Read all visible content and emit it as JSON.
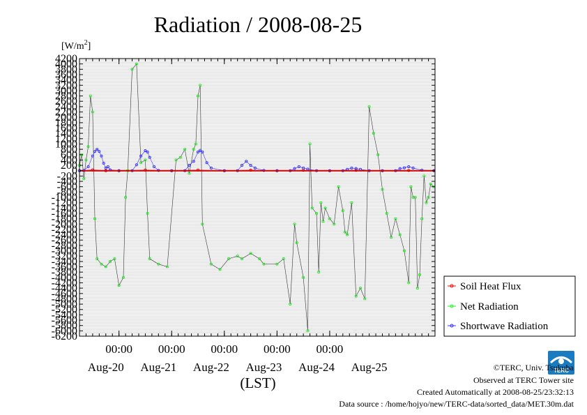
{
  "chart_data": {
    "type": "line",
    "title": "Radiation / 2008-08-25",
    "ylabel_unit": "[W/m",
    "ylabel_unit_sup": "2",
    "ylabel_unit_close": "]",
    "xlabel": "(LST)",
    "ylim": [
      -6200,
      4200
    ],
    "xlim": [
      "2008-08-19 06:00",
      "2008-08-25 23:59"
    ],
    "y_tick_labels": [
      "4200",
      "4000",
      "3800",
      "3600",
      "3400",
      "3200",
      "3000",
      "2800",
      "2600",
      "2400",
      "2200",
      "2000",
      "1800",
      "1600",
      "1400",
      "1200",
      "1000",
      "800",
      "600",
      "400",
      "200",
      "0",
      "-200",
      "-400",
      "-600",
      "-800",
      "-1000",
      "-1200",
      "-1400",
      "-1600",
      "-1800",
      "-2000",
      "-2200",
      "-2400",
      "-2600",
      "-2800",
      "-3000",
      "-3200",
      "-3400",
      "-3600",
      "-3800",
      "-4000",
      "-4200",
      "-4400",
      "-4600",
      "-4800",
      "-5000",
      "-5200",
      "-5400",
      "-5600",
      "-5800",
      "-6000",
      "-6200"
    ],
    "x_ticks": [
      "00:00",
      "00:00",
      "00:00",
      "00:00",
      "00:00"
    ],
    "x_day_labels": [
      "Aug-20",
      "Aug-21",
      "Aug-22",
      "Aug-23",
      "Aug-24",
      "Aug-25"
    ],
    "grid": true,
    "legend_position": "right",
    "series": [
      {
        "name": "Soil Heat Flux",
        "color": "#ff0000",
        "marker": "circle",
        "x": [
          "2008-08-19 06:00",
          "2008-08-19 12:00",
          "2008-08-19 18:00",
          "2008-08-20 00:00",
          "2008-08-20 12:00",
          "2008-08-21 00:00",
          "2008-08-21 12:00",
          "2008-08-22 00:00",
          "2008-08-22 12:00",
          "2008-08-23 00:00",
          "2008-08-23 12:00",
          "2008-08-24 00:00",
          "2008-08-24 12:00",
          "2008-08-25 00:00",
          "2008-08-25 12:00",
          "2008-08-25 23:30"
        ],
        "values": [
          0,
          30,
          0,
          -5,
          25,
          -5,
          25,
          -5,
          20,
          -5,
          15,
          -5,
          15,
          -5,
          10,
          0
        ]
      },
      {
        "name": "Net Radiation",
        "color": "#22ee22",
        "marker": "circle",
        "x": [
          "2008-08-19 06:00",
          "2008-08-19 07:00",
          "2008-08-19 08:00",
          "2008-08-19 09:00",
          "2008-08-19 10:00",
          "2008-08-19 11:00",
          "2008-08-19 12:00",
          "2008-08-19 13:00",
          "2008-08-19 14:00",
          "2008-08-19 16:00",
          "2008-08-19 18:00",
          "2008-08-19 20:00",
          "2008-08-19 22:00",
          "2008-08-20 00:00",
          "2008-08-20 02:00",
          "2008-08-20 03:00",
          "2008-08-20 04:00",
          "2008-08-20 06:00",
          "2008-08-20 08:00",
          "2008-08-20 10:00",
          "2008-08-20 12:00",
          "2008-08-20 13:00",
          "2008-08-20 14:00",
          "2008-08-20 18:00",
          "2008-08-20 22:00",
          "2008-08-21 02:00",
          "2008-08-21 04:00",
          "2008-08-21 06:00",
          "2008-08-21 08:00",
          "2008-08-21 10:00",
          "2008-08-21 11:00",
          "2008-08-21 12:00",
          "2008-08-21 13:00",
          "2008-08-21 14:00",
          "2008-08-21 18:00",
          "2008-08-21 22:00",
          "2008-08-22 02:00",
          "2008-08-22 06:00",
          "2008-08-22 08:00",
          "2008-08-22 12:00",
          "2008-08-22 16:00",
          "2008-08-22 18:00",
          "2008-08-23 00:00",
          "2008-08-23 03:00",
          "2008-08-23 06:00",
          "2008-08-23 08:00",
          "2008-08-23 09:00",
          "2008-08-23 12:00",
          "2008-08-23 14:00",
          "2008-08-23 15:00",
          "2008-08-23 16:00",
          "2008-08-23 18:00",
          "2008-08-23 19:00",
          "2008-08-23 20:00",
          "2008-08-23 21:00",
          "2008-08-23 22:00",
          "2008-08-24 00:00",
          "2008-08-24 02:00",
          "2008-08-24 04:00",
          "2008-08-24 06:00",
          "2008-08-24 07:00",
          "2008-08-24 08:00",
          "2008-08-24 10:00",
          "2008-08-24 12:00",
          "2008-08-24 14:00",
          "2008-08-24 16:00",
          "2008-08-24 18:00",
          "2008-08-24 20:00",
          "2008-08-24 22:00",
          "2008-08-25 00:00",
          "2008-08-25 02:00",
          "2008-08-25 04:00",
          "2008-08-25 06:00",
          "2008-08-25 08:00",
          "2008-08-25 10:00",
          "2008-08-25 12:00",
          "2008-08-25 13:00",
          "2008-08-25 14:00",
          "2008-08-25 15:00",
          "2008-08-25 16:00",
          "2008-08-25 17:00",
          "2008-08-25 18:00",
          "2008-08-25 19:00",
          "2008-08-25 20:00",
          "2008-08-25 21:00",
          "2008-08-25 22:00",
          "2008-08-25 23:30"
        ],
        "values": [
          200,
          600,
          -300,
          400,
          900,
          2800,
          2200,
          -1800,
          -3300,
          -3500,
          -3600,
          -3400,
          -3300,
          -4300,
          -4000,
          -1000,
          0,
          3800,
          4000,
          300,
          400,
          -1600,
          -3300,
          -3500,
          -3600,
          400,
          500,
          800,
          -100,
          800,
          1000,
          2800,
          3200,
          -2000,
          -3500,
          -3700,
          -3300,
          -3200,
          -3300,
          -3100,
          -3300,
          -3500,
          -3500,
          -3300,
          -5000,
          -2000,
          -2700,
          -4000,
          -6000,
          1000,
          -1400,
          -1600,
          -3800,
          -1200,
          -1900,
          -1400,
          -1800,
          -2000,
          -600,
          -1500,
          -2300,
          -2400,
          -1200,
          -4700,
          -4400,
          -4800,
          2400,
          1400,
          600,
          -700,
          -1600,
          -2500,
          -1800,
          -2400,
          -3000,
          -4200,
          -600,
          -1000,
          -1000,
          -4400,
          -3900,
          -1800,
          -200,
          -1200,
          -1000,
          -500,
          -600
        ],
        "x_note": ""
      },
      {
        "name": "Shortwave Radiation",
        "color": "#3333ff",
        "marker": "circle",
        "x": [
          "2008-08-19 06:00",
          "2008-08-19 08:00",
          "2008-08-19 10:00",
          "2008-08-19 12:00",
          "2008-08-19 13:00",
          "2008-08-19 14:00",
          "2008-08-19 15:00",
          "2008-08-19 16:00",
          "2008-08-19 17:00",
          "2008-08-19 18:00",
          "2008-08-19 19:00",
          "2008-08-19 20:00",
          "2008-08-20 00:00",
          "2008-08-20 06:00",
          "2008-08-20 08:00",
          "2008-08-20 10:00",
          "2008-08-20 12:00",
          "2008-08-20 13:00",
          "2008-08-20 14:00",
          "2008-08-20 16:00",
          "2008-08-20 18:00",
          "2008-08-21 00:00",
          "2008-08-21 06:00",
          "2008-08-21 08:00",
          "2008-08-21 10:00",
          "2008-08-21 12:00",
          "2008-08-21 13:00",
          "2008-08-21 14:00",
          "2008-08-21 16:00",
          "2008-08-21 18:00",
          "2008-08-22 00:00",
          "2008-08-22 06:00",
          "2008-08-22 08:00",
          "2008-08-22 10:00",
          "2008-08-22 12:00",
          "2008-08-22 14:00",
          "2008-08-22 18:00",
          "2008-08-23 00:00",
          "2008-08-23 06:00",
          "2008-08-23 08:00",
          "2008-08-23 10:00",
          "2008-08-23 12:00",
          "2008-08-23 14:00",
          "2008-08-23 18:00",
          "2008-08-24 00:00",
          "2008-08-24 06:00",
          "2008-08-24 08:00",
          "2008-08-24 10:00",
          "2008-08-24 12:00",
          "2008-08-24 14:00",
          "2008-08-24 18:00",
          "2008-08-25 00:00",
          "2008-08-25 06:00",
          "2008-08-25 08:00",
          "2008-08-25 10:00",
          "2008-08-25 12:00",
          "2008-08-25 14:00",
          "2008-08-25 18:00",
          "2008-08-25 23:30"
        ],
        "values": [
          0,
          10,
          150,
          550,
          720,
          800,
          720,
          550,
          280,
          100,
          150,
          30,
          0,
          0,
          220,
          550,
          750,
          700,
          500,
          150,
          10,
          0,
          0,
          200,
          350,
          700,
          760,
          700,
          300,
          100,
          0,
          0,
          200,
          350,
          200,
          100,
          10,
          0,
          0,
          80,
          150,
          100,
          60,
          0,
          0,
          0,
          50,
          100,
          80,
          50,
          0,
          0,
          0,
          80,
          110,
          150,
          100,
          20,
          0
        ]
      }
    ]
  },
  "footer": {
    "copyright": "©TERC, Univ. Tsukuba",
    "observed": "Observed at TERC Tower site",
    "created": "Created Automatically at 2008-08-25/23:32:13",
    "source": "Data source : /home/hojyo/new/TERC-data/sorted_data/MET.30m.dat",
    "logo_text": "TERC"
  }
}
